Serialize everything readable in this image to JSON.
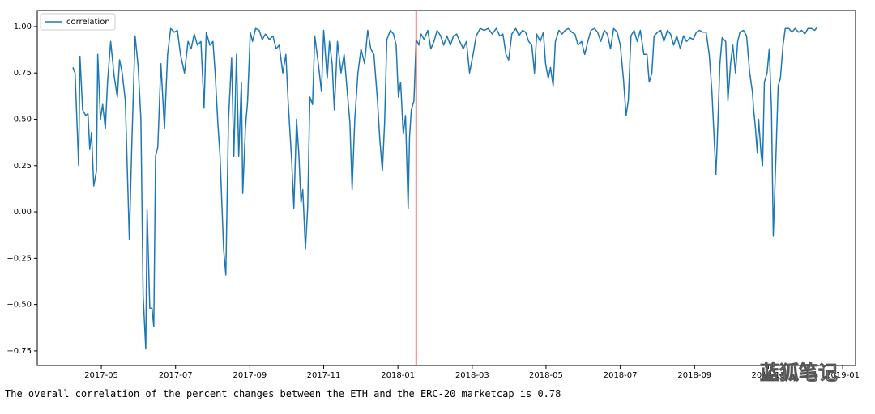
{
  "chart_data": {
    "type": "line",
    "series": [
      {
        "name": "correlation",
        "color": "#1f77b4",
        "x": [
          2017.269,
          2017.274,
          2017.282,
          2017.285,
          2017.291,
          2017.298,
          2017.303,
          2017.307,
          2017.311,
          2017.316,
          2017.322,
          2017.325,
          2017.331,
          2017.336,
          2017.342,
          2017.347,
          2017.354,
          2017.362,
          2017.369,
          2017.374,
          2017.38,
          2017.387,
          2017.393,
          2017.396,
          2017.402,
          2017.409,
          2017.416,
          2017.422,
          2017.427,
          2017.433,
          2017.436,
          2017.442,
          2017.447,
          2017.451,
          2017.455,
          2017.46,
          2017.467,
          2017.475,
          2017.482,
          2017.489,
          2017.497,
          2017.504,
          2017.511,
          2017.52,
          2017.528,
          2017.535,
          2017.542,
          2017.549,
          2017.557,
          2017.564,
          2017.569,
          2017.577,
          2017.584,
          2017.589,
          2017.595,
          2017.6,
          2017.608,
          2017.613,
          2017.619,
          2017.626,
          2017.631,
          2017.637,
          2017.642,
          2017.648,
          2017.651,
          2017.657,
          2017.662,
          2017.668,
          2017.673,
          2017.68,
          2017.688,
          2017.695,
          2017.702,
          2017.711,
          2017.719,
          2017.726,
          2017.733,
          2017.741,
          2017.748,
          2017.753,
          2017.761,
          2017.766,
          2017.772,
          2017.777,
          2017.782,
          2017.786,
          2017.792,
          2017.797,
          2017.802,
          2017.808,
          2017.813,
          2017.821,
          2017.828,
          2017.833,
          2017.841,
          2017.846,
          2017.852,
          2017.857,
          2017.864,
          2017.872,
          2017.879,
          2017.886,
          2017.892,
          2017.897,
          2017.903,
          2017.91,
          2017.917,
          2017.925,
          2017.932,
          2017.939,
          2017.946,
          2017.954,
          2017.959,
          2017.965,
          2017.97,
          2017.975,
          2017.983,
          2017.99,
          2017.996,
          2018.001,
          2018.006,
          2018.012,
          2018.017,
          2018.023,
          2018.026,
          2018.03,
          2018.036,
          2018.041,
          2018.047,
          2018.052,
          2018.059,
          2018.067,
          2018.074,
          2018.081,
          2018.088,
          2018.096,
          2018.103,
          2018.11,
          2018.118,
          2018.125,
          2018.132,
          2018.139,
          2018.147,
          2018.154,
          2018.161,
          2018.169,
          2018.176,
          2018.185,
          2018.194,
          2018.203,
          2018.212,
          2018.221,
          2018.229,
          2018.236,
          2018.243,
          2018.249,
          2018.256,
          2018.265,
          2018.272,
          2018.28,
          2018.287,
          2018.294,
          2018.301,
          2018.307,
          2018.312,
          2018.32,
          2018.327,
          2018.332,
          2018.338,
          2018.343,
          2018.349,
          2018.354,
          2018.362,
          2018.369,
          2018.376,
          2018.383,
          2018.391,
          2018.398,
          2018.405,
          2018.413,
          2018.42,
          2018.427,
          2018.434,
          2018.442,
          2018.449,
          2018.456,
          2018.464,
          2018.471,
          2018.478,
          2018.485,
          2018.493,
          2018.5,
          2018.507,
          2018.513,
          2018.518,
          2018.524,
          2018.531,
          2018.538,
          2018.545,
          2018.553,
          2018.56,
          2018.565,
          2018.571,
          2018.576,
          2018.584,
          2018.591,
          2018.598,
          2018.606,
          2018.613,
          2018.62,
          2018.627,
          2018.635,
          2018.642,
          2018.649,
          2018.657,
          2018.664,
          2018.671,
          2018.678,
          2018.686,
          2018.693,
          2018.7,
          2018.706,
          2018.711,
          2018.715,
          2018.718,
          2018.724,
          2018.729,
          2018.737,
          2018.742,
          2018.748,
          2018.753,
          2018.759,
          2018.764,
          2018.769,
          2018.777,
          2018.784,
          2018.791,
          2018.797,
          2018.8,
          2018.804,
          2018.808,
          2018.811,
          2018.817,
          2018.82,
          2018.824,
          2018.83,
          2018.835,
          2018.84,
          2018.844,
          2018.85,
          2018.855,
          2018.86,
          2018.866,
          2018.871,
          2018.879,
          2018.886,
          2018.893,
          2018.901,
          2018.908,
          2018.915,
          2018.922,
          2018.93,
          2018.937,
          2018.944
        ],
        "values": [
          0.78,
          0.75,
          0.25,
          0.84,
          0.55,
          0.52,
          0.53,
          0.34,
          0.43,
          0.14,
          0.22,
          0.85,
          0.5,
          0.58,
          0.45,
          0.7,
          0.92,
          0.73,
          0.62,
          0.82,
          0.75,
          0.6,
          0.1,
          -0.15,
          0.4,
          0.95,
          0.78,
          0.5,
          -0.45,
          -0.74,
          0.01,
          -0.52,
          -0.52,
          -0.62,
          0.3,
          0.35,
          0.8,
          0.45,
          0.85,
          0.99,
          0.97,
          0.98,
          0.85,
          0.75,
          0.92,
          0.88,
          0.96,
          0.9,
          0.92,
          0.56,
          0.97,
          0.9,
          0.92,
          0.75,
          0.48,
          0.3,
          -0.2,
          -0.34,
          0.5,
          0.83,
          0.3,
          0.85,
          0.3,
          0.7,
          0.1,
          0.45,
          0.6,
          0.97,
          0.92,
          0.99,
          0.98,
          0.93,
          0.96,
          0.93,
          0.95,
          0.88,
          0.9,
          0.75,
          0.85,
          0.6,
          0.28,
          0.02,
          0.5,
          0.32,
          0.05,
          0.12,
          -0.2,
          0.02,
          0.62,
          0.58,
          0.95,
          0.8,
          0.65,
          0.98,
          0.72,
          0.92,
          0.8,
          0.55,
          0.92,
          0.75,
          0.85,
          0.65,
          0.48,
          0.12,
          0.5,
          0.75,
          0.88,
          0.8,
          0.98,
          0.88,
          0.85,
          0.6,
          0.4,
          0.22,
          0.48,
          0.93,
          0.98,
          0.96,
          0.9,
          0.62,
          0.7,
          0.42,
          0.52,
          0.02,
          0.4,
          0.55,
          0.6,
          0.93,
          0.9,
          0.96,
          0.93,
          0.98,
          0.88,
          0.92,
          0.98,
          0.95,
          0.9,
          0.95,
          0.9,
          0.95,
          0.96,
          0.92,
          0.88,
          0.92,
          0.75,
          0.85,
          0.95,
          0.99,
          0.98,
          0.99,
          0.96,
          0.99,
          0.95,
          0.96,
          0.85,
          0.82,
          0.96,
          0.99,
          0.95,
          0.98,
          0.97,
          0.92,
          0.9,
          0.75,
          0.96,
          0.92,
          0.97,
          0.8,
          0.72,
          0.78,
          0.68,
          0.92,
          0.98,
          0.96,
          0.98,
          0.99,
          0.97,
          0.96,
          0.9,
          0.92,
          0.85,
          0.92,
          0.98,
          0.99,
          0.97,
          0.92,
          0.98,
          0.96,
          0.88,
          0.99,
          0.97,
          0.9,
          0.72,
          0.52,
          0.6,
          0.95,
          0.98,
          0.92,
          0.98,
          0.85,
          0.85,
          0.7,
          0.75,
          0.95,
          0.97,
          0.98,
          0.92,
          0.98,
          0.96,
          0.9,
          0.95,
          0.88,
          0.95,
          0.92,
          0.94,
          0.93,
          0.97,
          0.98,
          0.97,
          0.97,
          0.85,
          0.65,
          0.4,
          0.2,
          0.38,
          0.8,
          0.94,
          0.92,
          0.6,
          0.8,
          0.9,
          0.75,
          0.92,
          0.97,
          0.98,
          0.95,
          0.75,
          0.65,
          0.55,
          0.45,
          0.32,
          0.5,
          0.3,
          0.25,
          0.7,
          0.75,
          0.88,
          0.55,
          -0.13,
          0.3,
          0.68,
          0.72,
          0.9,
          0.99,
          0.99,
          0.97,
          0.99,
          0.97,
          0.98,
          0.96,
          0.99,
          0.99,
          0.98,
          1.0
        ]
      }
    ],
    "xlim": [
      2017.189,
      2019.029
    ],
    "xticks": [
      {
        "value": 2017.333,
        "label": "2017-05"
      },
      {
        "value": 2017.5,
        "label": "2017-07"
      },
      {
        "value": 2017.667,
        "label": "2017-09"
      },
      {
        "value": 2017.833,
        "label": "2017-11"
      },
      {
        "value": 2018.0,
        "label": "2018-01"
      },
      {
        "value": 2018.167,
        "label": "2018-03"
      },
      {
        "value": 2018.333,
        "label": "2018-05"
      },
      {
        "value": 2018.5,
        "label": "2018-07"
      },
      {
        "value": 2018.667,
        "label": "2018-09"
      },
      {
        "value": 2018.833,
        "label": "2018-11"
      },
      {
        "value": 2019.0,
        "label": "2019-01"
      }
    ],
    "ylim": [
      -0.829,
      1.087
    ],
    "yticks": [
      {
        "value": -0.75,
        "label": "−0.75"
      },
      {
        "value": -0.5,
        "label": "−0.50"
      },
      {
        "value": -0.25,
        "label": "−0.25"
      },
      {
        "value": 0,
        "label": "0.00"
      },
      {
        "value": 0.25,
        "label": "0.25"
      },
      {
        "value": 0.5,
        "label": "0.50"
      },
      {
        "value": 0.75,
        "label": "0.75"
      },
      {
        "value": 1,
        "label": "1.00"
      }
    ],
    "vline": {
      "x": 2018.041,
      "color": "#e8302a"
    },
    "grid": false,
    "legend": "upper left",
    "watermark": "蓝狐笔记"
  },
  "output_text": "The overall correlation of the percent changes between the ETH and the ERC-20 marketcap is 0.78"
}
